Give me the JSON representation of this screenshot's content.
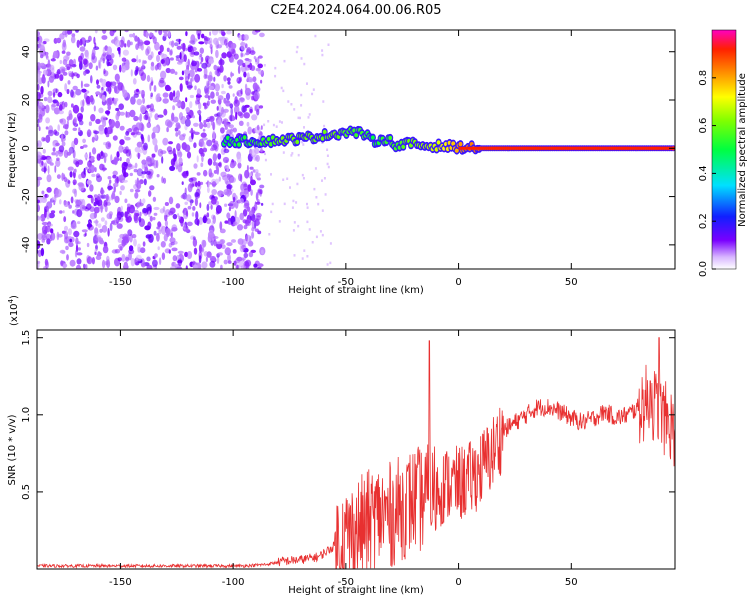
{
  "title": "C2E4.2024.064.00.06.R05",
  "colors": {
    "snr_line": "#e83030",
    "axis": "#000000"
  },
  "chart_data": [
    {
      "type": "heatmap",
      "xlabel": "Height of straight line (km)",
      "ylabel": "Frequency (Hz)",
      "xlim": [
        -187,
        96
      ],
      "ylim": [
        -50,
        49
      ],
      "x_ticks": [
        -150,
        -100,
        -50,
        0,
        50
      ],
      "x_tick_labels": [
        "-150",
        "-100",
        "-50",
        "0",
        "50"
      ],
      "y_ticks": [
        -40,
        -20,
        0,
        20,
        40
      ],
      "y_tick_labels": [
        "-40",
        "-20",
        "0",
        "20",
        "40"
      ],
      "colorbar": {
        "label": "Normalized spectral amplitude",
        "range": [
          0,
          1
        ],
        "ticks": [
          0.0,
          0.2,
          0.4,
          0.6,
          0.8
        ],
        "tick_labels": [
          "0.0",
          "0.2",
          "0.4",
          "0.6",
          "0.8"
        ],
        "colormap": "rainbow"
      },
      "noise_region": {
        "x": [
          -187,
          -87
        ],
        "y": [
          -50,
          49
        ],
        "amplitude": 0.1
      },
      "ridge": [
        {
          "x": -104,
          "y": 3,
          "amplitude": 0.5
        },
        {
          "x": -85,
          "y": 3,
          "amplitude": 0.55
        },
        {
          "x": -78,
          "y": 3.5,
          "amplitude": 0.6
        },
        {
          "x": -70,
          "y": 4,
          "amplitude": 0.6
        },
        {
          "x": -62,
          "y": 5,
          "amplitude": 0.6
        },
        {
          "x": -55,
          "y": 6,
          "amplitude": 0.6
        },
        {
          "x": -48,
          "y": 7,
          "amplitude": 0.55
        },
        {
          "x": -42,
          "y": 6,
          "amplitude": 0.55
        },
        {
          "x": -38,
          "y": 3,
          "amplitude": 0.5
        },
        {
          "x": -32,
          "y": 4,
          "amplitude": 0.55
        },
        {
          "x": -27,
          "y": 1,
          "amplitude": 0.55
        },
        {
          "x": -22,
          "y": 2,
          "amplitude": 0.6
        },
        {
          "x": -15,
          "y": 1,
          "amplitude": 0.65
        },
        {
          "x": -8,
          "y": 1,
          "amplitude": 0.7
        },
        {
          "x": 0,
          "y": 0.5,
          "amplitude": 0.8
        },
        {
          "x": 10,
          "y": 0,
          "amplitude": 0.85
        },
        {
          "x": 25,
          "y": 0,
          "amplitude": 0.9
        },
        {
          "x": 50,
          "y": 0,
          "amplitude": 0.95
        },
        {
          "x": 75,
          "y": 0,
          "amplitude": 0.95
        },
        {
          "x": 96,
          "y": 0,
          "amplitude": 0.95
        }
      ]
    },
    {
      "type": "line",
      "xlabel": "Height of straight line (km)",
      "ylabel": "SNR (10 * v/v)",
      "y_exponent_label": "(x10",
      "y_exponent_power": "4",
      "y_exponent_close": ")",
      "xlim": [
        -187,
        96
      ],
      "ylim": [
        0,
        1.55
      ],
      "x_ticks": [
        -150,
        -100,
        -50,
        0,
        50
      ],
      "x_tick_labels": [
        "-150",
        "-100",
        "-50",
        "0",
        "50"
      ],
      "y_ticks": [
        0.5,
        1.0,
        1.5
      ],
      "y_tick_labels": [
        "0.5",
        "1.0",
        "1.5"
      ],
      "series": [
        {
          "envelope": [
            {
              "x": -187,
              "y": 0.02
            },
            {
              "x": -140,
              "y": 0.02
            },
            {
              "x": -95,
              "y": 0.02
            },
            {
              "x": -85,
              "y": 0.03
            },
            {
              "x": -78,
              "y": 0.05
            },
            {
              "x": -70,
              "y": 0.06
            },
            {
              "x": -62,
              "y": 0.08
            },
            {
              "x": -55,
              "y": 0.15
            },
            {
              "x": -50,
              "y": 0.2
            },
            {
              "x": -45,
              "y": 0.25
            },
            {
              "x": -40,
              "y": 0.3
            },
            {
              "x": -35,
              "y": 0.35
            },
            {
              "x": -30,
              "y": 0.35
            },
            {
              "x": -25,
              "y": 0.4
            },
            {
              "x": -20,
              "y": 0.45
            },
            {
              "x": -15,
              "y": 0.45
            },
            {
              "x": -10,
              "y": 0.5
            },
            {
              "x": -5,
              "y": 0.55
            },
            {
              "x": 0,
              "y": 0.55
            },
            {
              "x": 5,
              "y": 0.58
            },
            {
              "x": 10,
              "y": 0.65
            },
            {
              "x": 15,
              "y": 0.75
            },
            {
              "x": 20,
              "y": 0.9
            },
            {
              "x": 25,
              "y": 0.95
            },
            {
              "x": 30,
              "y": 1.0
            },
            {
              "x": 35,
              "y": 1.05
            },
            {
              "x": 40,
              "y": 1.05
            },
            {
              "x": 45,
              "y": 1.02
            },
            {
              "x": 50,
              "y": 0.98
            },
            {
              "x": 55,
              "y": 0.95
            },
            {
              "x": 60,
              "y": 0.98
            },
            {
              "x": 65,
              "y": 1.02
            },
            {
              "x": 70,
              "y": 0.98
            },
            {
              "x": 75,
              "y": 1.0
            },
            {
              "x": 80,
              "y": 1.05
            },
            {
              "x": 85,
              "y": 1.1
            },
            {
              "x": 90,
              "y": 1.0
            },
            {
              "x": 96,
              "y": 0.9
            }
          ],
          "peaks": [
            {
              "x": -13,
              "y": 1.48
            },
            {
              "x": 89,
              "y": 1.5
            },
            {
              "x": 85,
              "y": 1.22
            }
          ],
          "noise_amplitude_by_region": [
            {
              "x": [
                -187,
                -80
              ],
              "spread": 0.01
            },
            {
              "x": [
                -80,
                -55
              ],
              "spread": 0.03
            },
            {
              "x": [
                -55,
                -10
              ],
              "spread": 0.35
            },
            {
              "x": [
                -10,
                20
              ],
              "spread": 0.25
            },
            {
              "x": [
                20,
                80
              ],
              "spread": 0.06
            },
            {
              "x": [
                80,
                96
              ],
              "spread": 0.25
            }
          ]
        }
      ]
    }
  ]
}
